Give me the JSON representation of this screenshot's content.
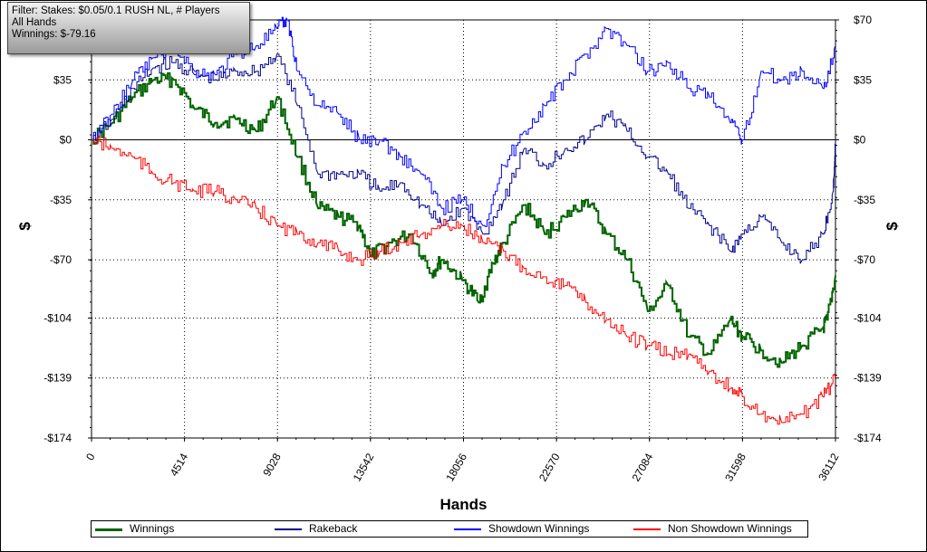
{
  "filter_box": {
    "lines": [
      "Filter: Stakes: $0.05/0.1 RUSH NL, # Players",
      "All Hands",
      "Winnings: $-79.16"
    ]
  },
  "colors": {
    "winnings": "#006400",
    "rakeback": "#00008b",
    "showdown": "#0000ff",
    "non_showdown": "#ff0000"
  },
  "chart_data": {
    "type": "line",
    "xlabel": "Hands",
    "ylabel": "$",
    "xlim": [
      0,
      36112
    ],
    "ylim": [
      -174,
      70
    ],
    "x_ticks": [
      0,
      4514,
      9028,
      13542,
      18056,
      22570,
      27084,
      31598,
      36112
    ],
    "y_ticks": [
      {
        "value": 70,
        "label": "$70"
      },
      {
        "value": 35,
        "label": "$35"
      },
      {
        "value": 0,
        "label": "$0"
      },
      {
        "value": -35,
        "label": "-$35"
      },
      {
        "value": -70,
        "label": "-$70"
      },
      {
        "value": -104,
        "label": "-$104"
      },
      {
        "value": -139,
        "label": "-$139"
      },
      {
        "value": -174,
        "label": "-$174"
      }
    ],
    "grid": true,
    "legend_position": "bottom",
    "series": [
      {
        "name": "Winnings",
        "color": "#006400",
        "x": [
          0,
          1000,
          2000,
          3000,
          4000,
          5000,
          6000,
          7000,
          8000,
          9000,
          10000,
          11000,
          12000,
          13000,
          13542,
          14500,
          15500,
          16500,
          17000,
          18000,
          18800,
          19500,
          20000,
          21000,
          22000,
          23000,
          24000,
          25000,
          26000,
          27000,
          28000,
          29000,
          30000,
          31000,
          31598,
          32500,
          33500,
          34500,
          35500,
          35700,
          36112
        ],
        "y": [
          0,
          10,
          25,
          35,
          35,
          18,
          10,
          12,
          5,
          25,
          -10,
          -40,
          -45,
          -50,
          -68,
          -60,
          -55,
          -78,
          -70,
          -82,
          -95,
          -72,
          -60,
          -38,
          -55,
          -45,
          -35,
          -55,
          -70,
          -100,
          -85,
          -115,
          -125,
          -105,
          -115,
          -123,
          -130,
          -120,
          -110,
          -105,
          -79.16
        ]
      },
      {
        "name": "Rakeback",
        "color": "#00008b",
        "x": [
          0,
          1000,
          2000,
          3000,
          4000,
          5000,
          6000,
          7000,
          8000,
          9000,
          10000,
          11000,
          12000,
          13000,
          14000,
          15000,
          16000,
          17000,
          18000,
          19000,
          20000,
          21000,
          22000,
          23000,
          24000,
          25000,
          26000,
          27000,
          28000,
          29000,
          30000,
          31000,
          31598,
          32500,
          33500,
          34500,
          35500,
          36000,
          36112
        ],
        "y": [
          0,
          12,
          30,
          42,
          45,
          38,
          35,
          40,
          40,
          50,
          20,
          -20,
          -20,
          -20,
          -30,
          -25,
          -38,
          -50,
          -40,
          -55,
          -35,
          -5,
          -15,
          -5,
          0,
          15,
          5,
          -10,
          -20,
          -40,
          -50,
          -65,
          -55,
          -45,
          -60,
          -70,
          -55,
          -30,
          0
        ]
      },
      {
        "name": "Showdown Winnings",
        "color": "#0000ff",
        "x": [
          0,
          1000,
          2000,
          3000,
          4000,
          5000,
          6000,
          7000,
          8000,
          9000,
          9500,
          10000,
          11000,
          12000,
          13000,
          14000,
          15000,
          16000,
          17000,
          18000,
          19000,
          20000,
          21000,
          22000,
          23000,
          24000,
          25000,
          26000,
          27000,
          28000,
          29000,
          30000,
          31000,
          31598,
          32500,
          33500,
          34500,
          35500,
          36112
        ],
        "y": [
          0,
          15,
          35,
          48,
          55,
          40,
          38,
          50,
          55,
          65,
          70,
          40,
          20,
          15,
          0,
          0,
          -10,
          -20,
          -40,
          -35,
          -50,
          -15,
          5,
          20,
          35,
          50,
          65,
          55,
          40,
          45,
          30,
          25,
          10,
          0,
          40,
          35,
          40,
          30,
          55
        ]
      },
      {
        "name": "Non Showdown Winnings",
        "color": "#ff0000",
        "x": [
          0,
          1000,
          2000,
          3000,
          4000,
          5000,
          6000,
          7000,
          8000,
          9000,
          10000,
          11000,
          12000,
          13000,
          14000,
          15000,
          16000,
          17000,
          18000,
          19000,
          20000,
          21000,
          22000,
          23000,
          24000,
          25000,
          26000,
          27000,
          28000,
          29000,
          30000,
          31000,
          31598,
          32500,
          33500,
          34500,
          35500,
          36112
        ],
        "y": [
          0,
          -5,
          -10,
          -20,
          -25,
          -30,
          -30,
          -35,
          -40,
          -50,
          -55,
          -60,
          -65,
          -70,
          -65,
          -60,
          -55,
          -50,
          -50,
          -60,
          -65,
          -75,
          -80,
          -85,
          -95,
          -105,
          -115,
          -120,
          -125,
          -125,
          -135,
          -145,
          -150,
          -160,
          -165,
          -160,
          -150,
          -139
        ]
      }
    ]
  },
  "legend": [
    {
      "label": "Winnings",
      "color": "#006400"
    },
    {
      "label": "Rakeback",
      "color": "#00008b"
    },
    {
      "label": "Showdown Winnings",
      "color": "#0000ff"
    },
    {
      "label": "Non Showdown Winnings",
      "color": "#ff0000"
    }
  ]
}
